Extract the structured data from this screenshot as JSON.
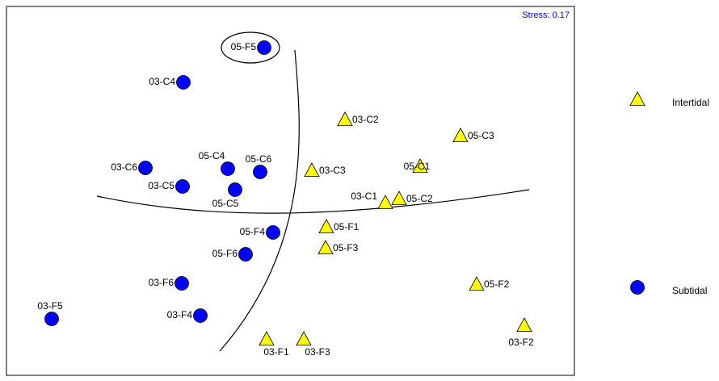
{
  "chart_data": {
    "type": "scatter",
    "annotation": "Stress: 0.17",
    "xlim": [
      0,
      703
    ],
    "ylim": [
      0,
      457
    ],
    "series": [
      {
        "name": "Intertidal",
        "color": "#ffff00",
        "marker": "triangle",
        "labels": [
          "03-C2",
          "05-C3",
          "03-C3",
          "05-C1",
          "03-C1",
          "05-C2",
          "05-F1",
          "05-F3",
          "05-F2",
          "03-F2",
          "03-F1",
          "03-F3"
        ],
        "x": [
          419,
          562,
          378,
          512,
          469,
          486,
          396,
          395,
          582,
          641,
          322,
          368
        ],
        "y": [
          317,
          297,
          254,
          259,
          214,
          219,
          184,
          158,
          113,
          62,
          45,
          45
        ]
      },
      {
        "name": "Subtidal",
        "color": "#0000ff",
        "marker": "circle",
        "labels": [
          "05-F5",
          "03-C4",
          "03-C6",
          "03-C5",
          "05-C4",
          "05-C6",
          "05-C5",
          "05-F4",
          "05-F6",
          "03-F6",
          "03-F4",
          "03-F5"
        ],
        "x": [
          319,
          219,
          172,
          218,
          274,
          314,
          283,
          330,
          296,
          217,
          240,
          56
        ],
        "y": [
          406,
          363,
          257,
          234,
          256,
          252,
          230,
          177,
          150,
          114,
          74,
          70
        ]
      }
    ]
  }
}
